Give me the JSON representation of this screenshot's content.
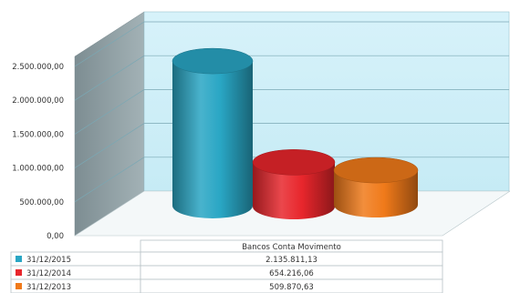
{
  "chart_data": {
    "type": "bar",
    "style": "3d-cylinder",
    "categories": [
      "Bancos Conta Movimento"
    ],
    "series": [
      {
        "name": "31/12/2015",
        "values": [
          2135811.13
        ],
        "label": "2.135.811,13",
        "color": "#29a6c4"
      },
      {
        "name": "31/12/2014",
        "values": [
          654216.06
        ],
        "label": "654.216,06",
        "color": "#e8262c"
      },
      {
        "name": "31/12/2013",
        "values": [
          509870.63
        ],
        "label": "509.870,63",
        "color": "#f07a1a"
      }
    ],
    "ylim": [
      0,
      2500000
    ],
    "yticks": [
      0,
      500000,
      1000000,
      1500000,
      2000000,
      2500000
    ],
    "ytick_labels": [
      "0,00",
      "500.000,00",
      "1.000.000,00",
      "1.500.000,00",
      "2.000.000,00",
      "2.500.000,00"
    ],
    "grid": true,
    "legend": "data-table-below",
    "colors": {
      "back_wall": "#cfeef7",
      "side_wall": "#8e9ea3",
      "grid": "#7aa8b4"
    }
  }
}
